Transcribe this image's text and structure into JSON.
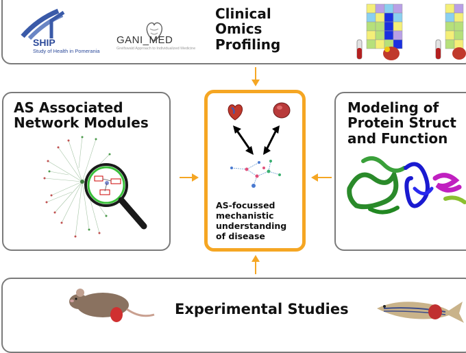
{
  "top": {
    "title_lines": [
      "Clinical",
      "Omics",
      "Profiling"
    ],
    "ship_logo": "SHIP",
    "ship_caption": "Study of Health in Pomerania",
    "ganimed_logo": "GANI_MED",
    "ganimed_caption": "Greifswald Approach to Individualized Medicine"
  },
  "left": {
    "title_lines": [
      "AS Associated",
      "Network Modules"
    ]
  },
  "right": {
    "title_lines": [
      "Modeling of",
      "Protein Struct",
      "and Function"
    ]
  },
  "center": {
    "caption_lines": [
      "AS-focussed",
      "mechanistic",
      "understanding",
      "of disease"
    ]
  },
  "bottom": {
    "title": "Experimental Studies"
  },
  "colors": {
    "accent": "#f5a623",
    "border": "#7a7a7a"
  }
}
